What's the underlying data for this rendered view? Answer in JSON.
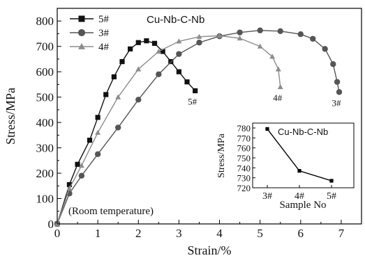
{
  "chart_data": [
    {
      "type": "scatter",
      "title": "Cu-Nb-C-Nb",
      "xlabel": "Strain/%",
      "ylabel": "Stress/MPa",
      "xlim": [
        0,
        7.5
      ],
      "ylim": [
        0,
        850
      ],
      "xticks": [
        "0",
        "1",
        "2",
        "3",
        "4",
        "5",
        "6",
        "7"
      ],
      "yticks": [
        "0",
        "100",
        "200",
        "300",
        "400",
        "500",
        "600",
        "700",
        "800"
      ],
      "legend_position": "top-left",
      "annotation": "(Room temperature)",
      "series": [
        {
          "name": "5#",
          "end_label": "5#",
          "marker": "square",
          "color": "#111111",
          "x": [
            0,
            0.3,
            0.5,
            0.8,
            1.0,
            1.2,
            1.4,
            1.6,
            1.8,
            2.0,
            2.2,
            2.4,
            2.6,
            2.8,
            3.0,
            3.2,
            3.4
          ],
          "y": [
            0,
            155,
            235,
            330,
            420,
            510,
            580,
            640,
            690,
            715,
            722,
            712,
            680,
            640,
            600,
            560,
            525
          ]
        },
        {
          "name": "3#",
          "end_label": "3#",
          "marker": "circle",
          "color": "#555555",
          "x": [
            0,
            0.3,
            0.6,
            1.0,
            1.5,
            2.0,
            2.5,
            3.0,
            3.5,
            4.0,
            4.5,
            5.0,
            5.5,
            6.0,
            6.3,
            6.6,
            6.8,
            6.9,
            6.95
          ],
          "y": [
            0,
            120,
            190,
            275,
            380,
            490,
            590,
            670,
            715,
            740,
            755,
            763,
            760,
            748,
            730,
            690,
            630,
            560,
            520
          ]
        },
        {
          "name": "4#",
          "end_label": "4#",
          "marker": "triangle",
          "color": "#8c8c8c",
          "x": [
            0,
            0.3,
            0.6,
            1.0,
            1.5,
            2.0,
            2.5,
            3.0,
            3.5,
            4.0,
            4.5,
            5.0,
            5.3,
            5.45,
            5.5
          ],
          "y": [
            0,
            140,
            230,
            360,
            500,
            610,
            680,
            720,
            738,
            742,
            732,
            700,
            660,
            610,
            540
          ]
        }
      ]
    },
    {
      "type": "line",
      "title": "Cu-Nb-C-Nb",
      "xlabel": "Sample No",
      "ylabel": "Stress/MPa",
      "categories": [
        "3#",
        "4#",
        "5#"
      ],
      "values": [
        779,
        737,
        727
      ],
      "ylim": [
        720,
        780
      ],
      "yticks": [
        "720",
        "730",
        "740",
        "750",
        "760",
        "770",
        "780"
      ],
      "marker": "square",
      "color": "#000000"
    }
  ]
}
